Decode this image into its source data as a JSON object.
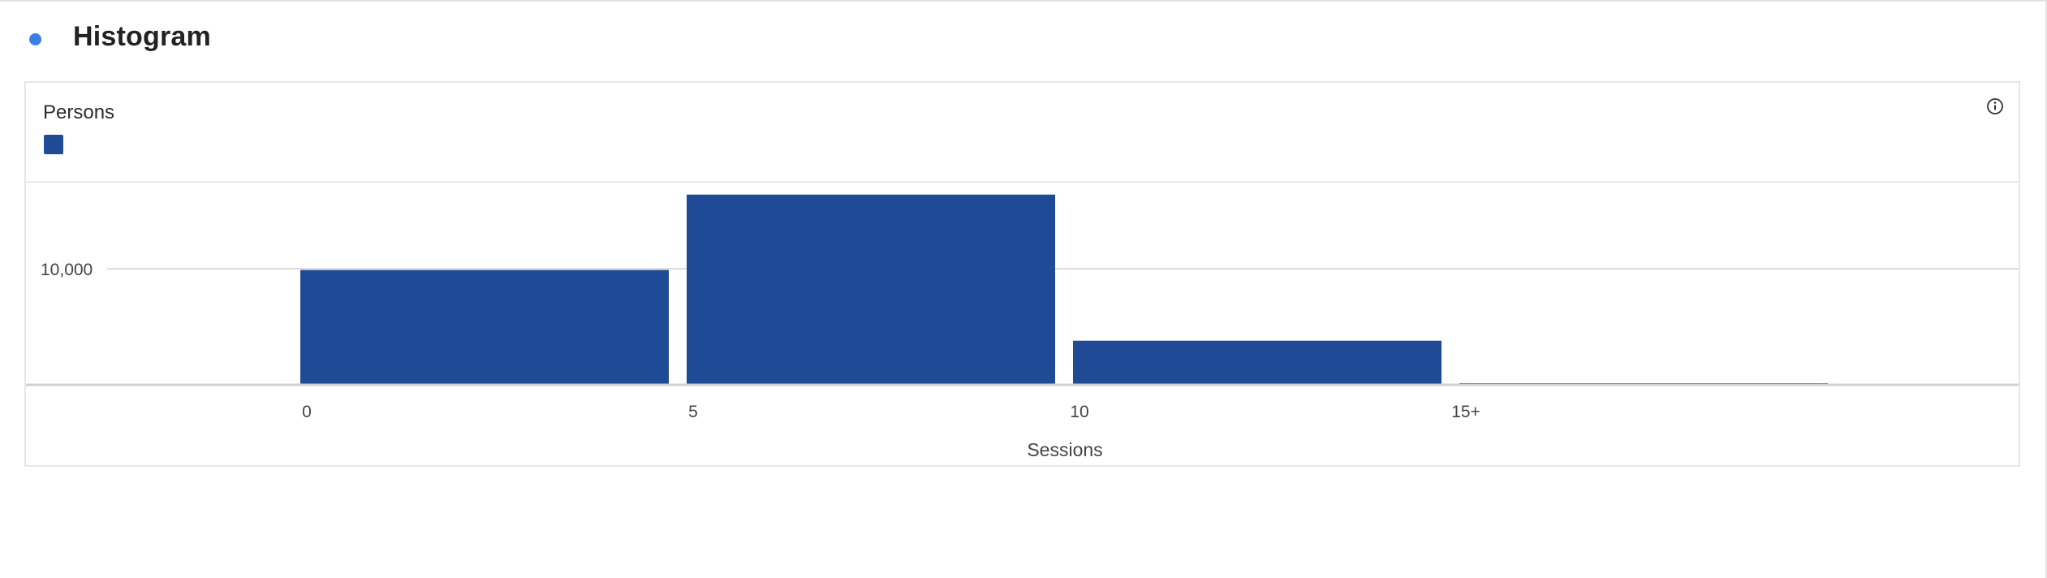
{
  "header": {
    "title": "Histogram"
  },
  "colors": {
    "accent_dot": "#3b7fe6",
    "bar": "#1e4a96",
    "grid": "#e3e3e3"
  },
  "icons": {
    "info": "info-circle-icon"
  },
  "chart_data": {
    "type": "bar",
    "title": "Persons",
    "xlabel": "Sessions",
    "ylabel": "",
    "y_tick_labels": [
      "10,000"
    ],
    "y_ticks": [
      10000
    ],
    "ylim": [
      0,
      17500
    ],
    "grid": true,
    "legend": "top-left",
    "x_tick_labels": [
      "0",
      "5",
      "10",
      "15+"
    ],
    "bins": [
      {
        "from": "0",
        "to": "5",
        "value": 9900
      },
      {
        "from": "5",
        "to": "10",
        "value": 16400
      },
      {
        "from": "10",
        "to": "15+",
        "value": 3800
      },
      {
        "from": "15+",
        "to": "",
        "value": 100
      }
    ]
  }
}
